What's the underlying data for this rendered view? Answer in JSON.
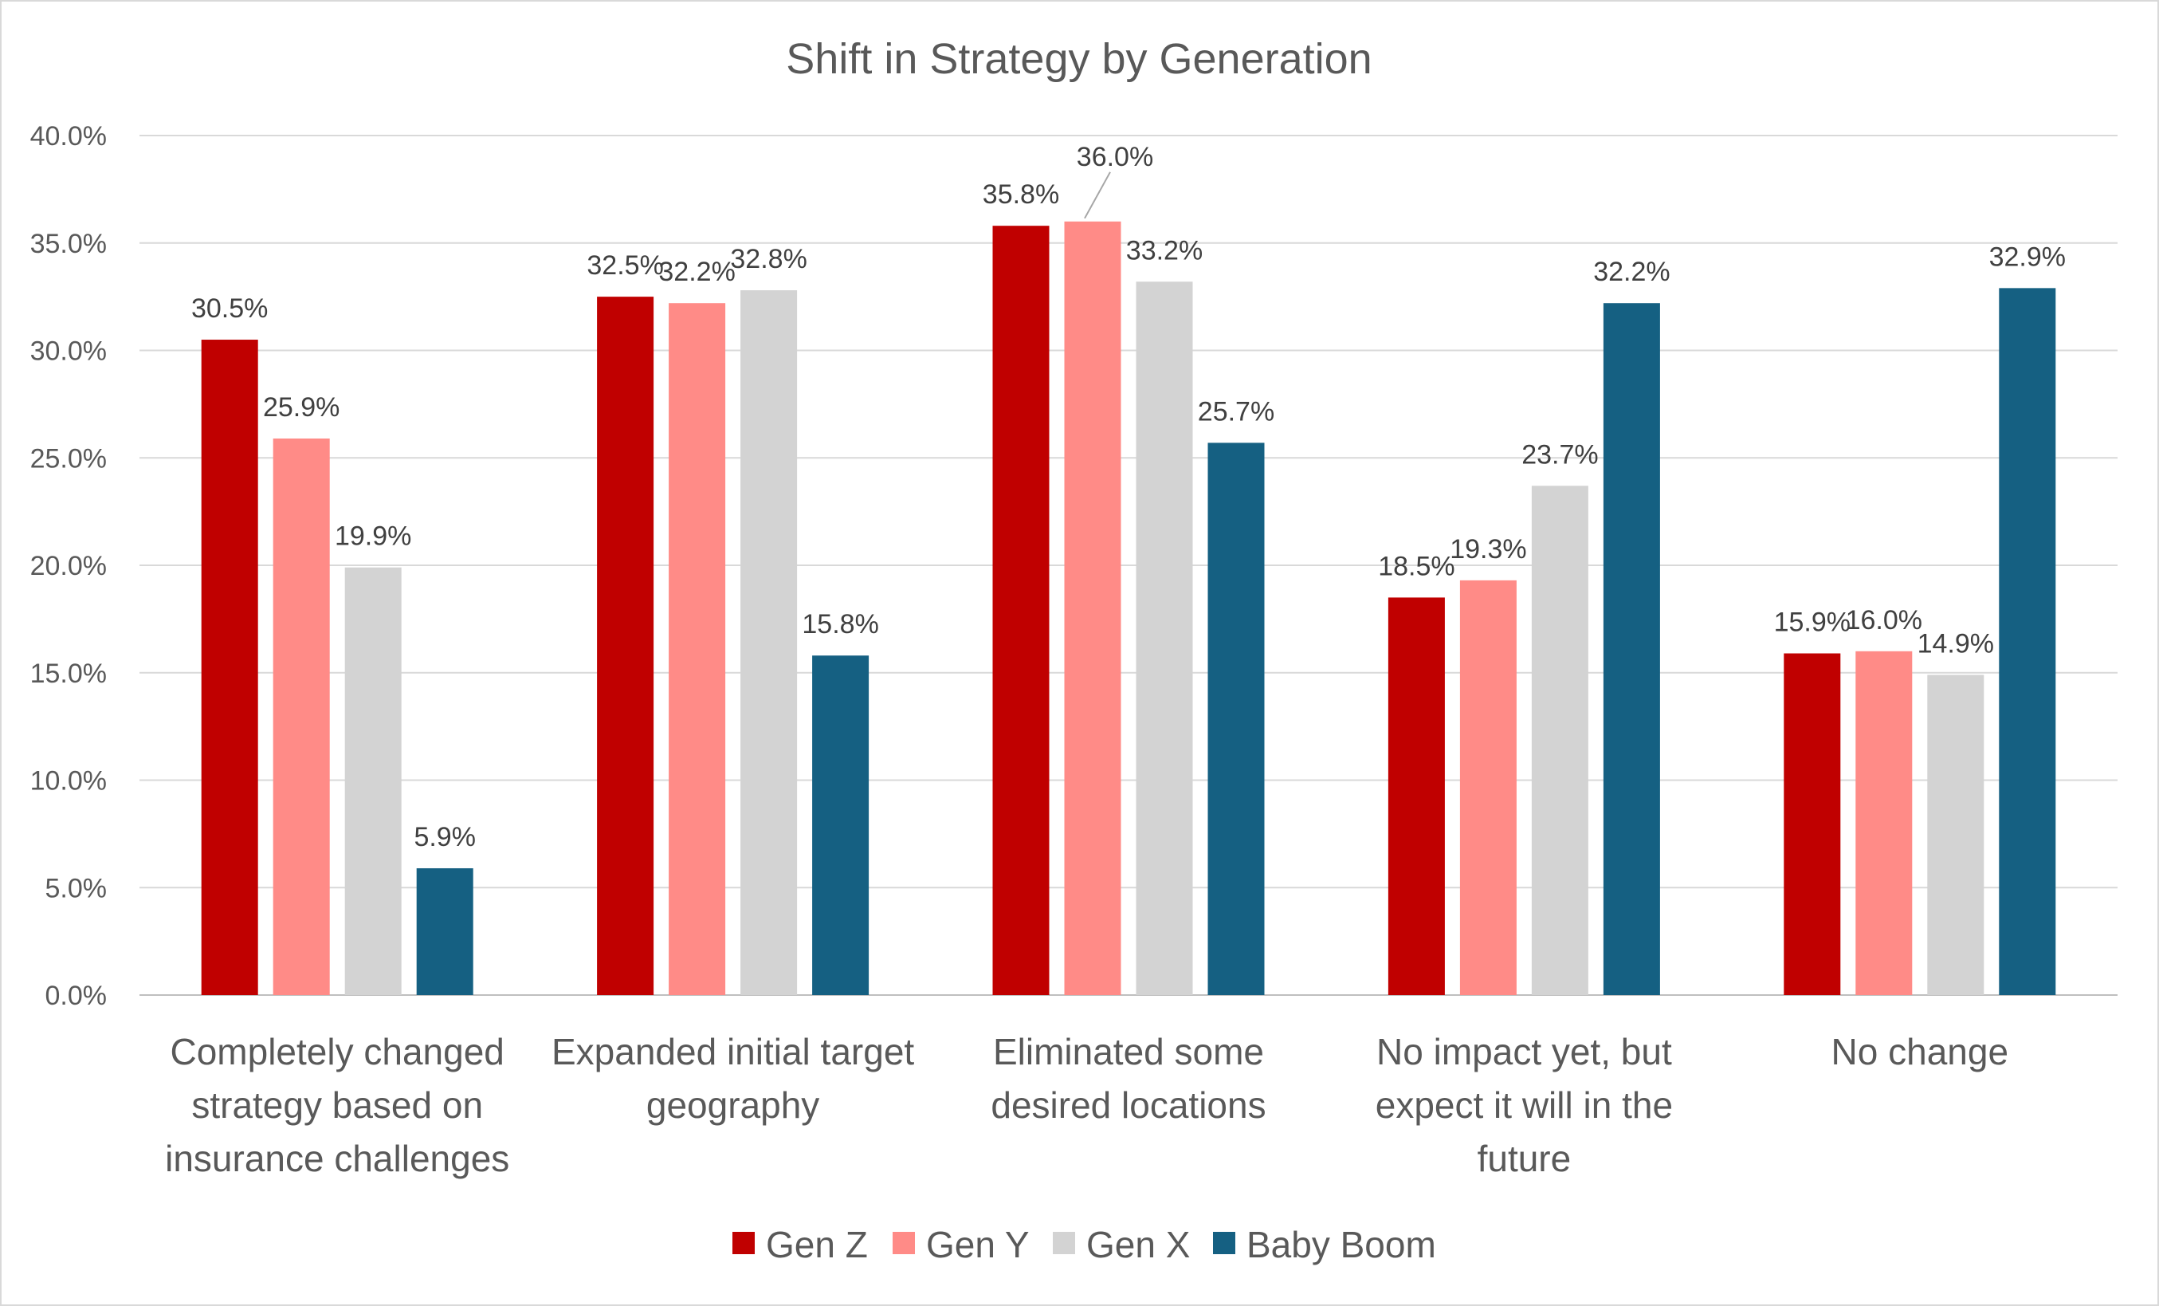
{
  "chart_data": {
    "type": "bar",
    "title": "Shift in Strategy by Generation",
    "categories": [
      [
        "Completely changed",
        "strategy based on",
        "insurance challenges"
      ],
      [
        "Expanded initial target",
        "geography"
      ],
      [
        "Eliminated some",
        "desired locations"
      ],
      [
        "No impact yet, but",
        "expect it will in the",
        "future"
      ],
      [
        "No change"
      ]
    ],
    "series": [
      {
        "name": "Gen Z",
        "color": "#c00000",
        "values": [
          30.5,
          32.5,
          35.8,
          18.5,
          15.9
        ],
        "labels": [
          "30.5%",
          "32.5%",
          "35.8%",
          "18.5%",
          "15.9%"
        ]
      },
      {
        "name": "Gen Y",
        "color": "#ff8b87",
        "values": [
          25.9,
          32.2,
          36.0,
          19.3,
          16.0
        ],
        "labels": [
          "25.9%",
          "32.2%",
          "36.0%",
          "19.3%",
          "16.0%"
        ]
      },
      {
        "name": "Gen X",
        "color": "#d3d3d3",
        "values": [
          19.9,
          32.8,
          33.2,
          23.7,
          14.9
        ],
        "labels": [
          "19.9%",
          "32.8%",
          "33.2%",
          "23.7%",
          "14.9%"
        ]
      },
      {
        "name": "Baby Boom",
        "color": "#156082",
        "values": [
          5.9,
          15.8,
          25.7,
          32.2,
          32.9
        ],
        "labels": [
          "5.9%",
          "15.8%",
          "25.7%",
          "32.2%",
          "32.9%"
        ]
      }
    ],
    "ylim": [
      0,
      40
    ],
    "yticks": [
      0,
      5,
      10,
      15,
      20,
      25,
      30,
      35,
      40
    ],
    "ytick_labels": [
      "0.0%",
      "5.0%",
      "10.0%",
      "15.0%",
      "20.0%",
      "25.0%",
      "30.0%",
      "35.0%",
      "40.0%"
    ],
    "grid": true,
    "legend_position": "bottom"
  }
}
